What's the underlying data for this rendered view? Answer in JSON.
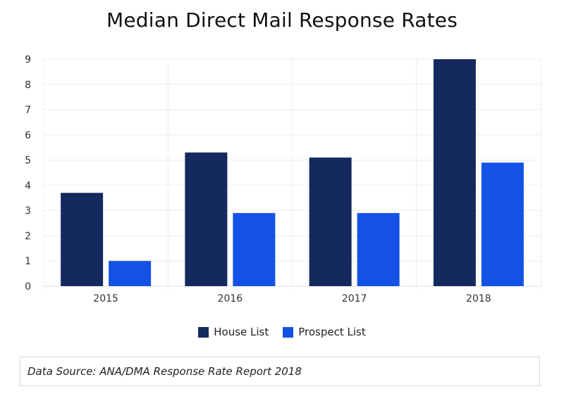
{
  "chart_data": {
    "type": "bar",
    "title": "Median Direct Mail Response Rates",
    "categories": [
      "2015",
      "2016",
      "2017",
      "2018"
    ],
    "series": [
      {
        "name": "House List",
        "color": "#14295e",
        "values": [
          3.7,
          5.3,
          5.1,
          9.0
        ]
      },
      {
        "name": "Prospect List",
        "color": "#1452e6",
        "values": [
          1.0,
          2.9,
          2.9,
          4.9
        ]
      }
    ],
    "xlabel": "",
    "ylabel": "",
    "ylim": [
      0,
      9
    ],
    "yticks": [
      "0",
      "1",
      "2",
      "3",
      "4",
      "5",
      "6",
      "7",
      "8",
      "9"
    ],
    "grid": true,
    "legend": "bottom"
  },
  "source": {
    "text": "Data Source: ANA/DMA Response Rate Report 2018"
  }
}
